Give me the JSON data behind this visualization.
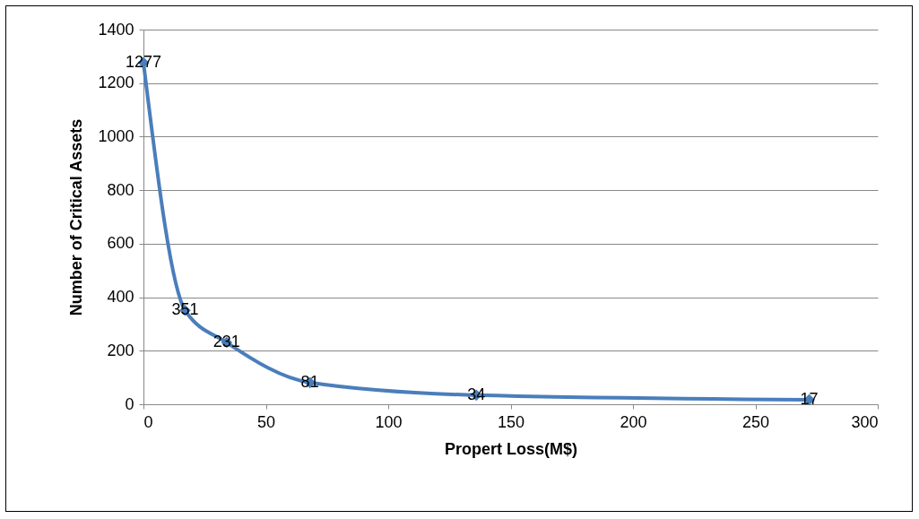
{
  "chart_data": {
    "type": "line",
    "xlabel": "Propert Loss(M$)",
    "ylabel": "Number of Critical Assets",
    "x": [
      0,
      17,
      34,
      68,
      136,
      272
    ],
    "series": [
      {
        "color": "#4a7ebb",
        "values": [
          1277,
          351,
          231,
          81,
          34,
          17
        ]
      }
    ],
    "xlim": [
      0,
      300
    ],
    "xticks": [
      0,
      50,
      100,
      150,
      200,
      250,
      300
    ],
    "ylim": [
      0,
      1400
    ],
    "yticks": [
      0,
      200,
      400,
      600,
      800,
      1000,
      1200,
      1400
    ],
    "grid": "y",
    "legend": false,
    "marker": "diamond",
    "line_style": "solid",
    "data_labels": true
  }
}
